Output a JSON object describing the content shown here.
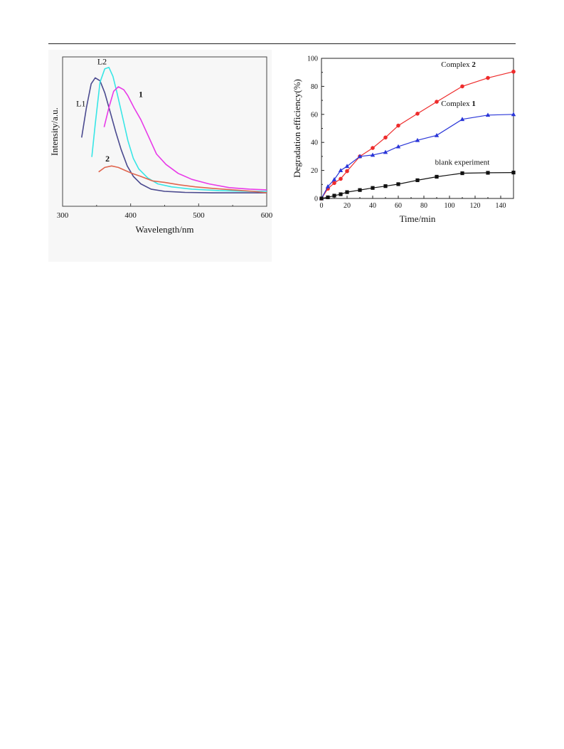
{
  "chart_data": [
    {
      "type": "line",
      "xlabel": "Wavelength/nm",
      "ylabel": "Intensity/a.u.",
      "xlim": [
        300,
        600
      ],
      "ylim": [
        0,
        100
      ],
      "x_ticks": [
        "300",
        "400",
        "500",
        "600"
      ],
      "y_ticks_labeled": false,
      "grid": false,
      "legend": "none (curves labeled inline)",
      "series": [
        {
          "name": "L1",
          "color": "#4b4a8f",
          "points": [
            [
              328,
              46
            ],
            [
              335,
              66
            ],
            [
              342,
              82
            ],
            [
              348,
              86
            ],
            [
              355,
              84
            ],
            [
              362,
              76
            ],
            [
              370,
              63
            ],
            [
              378,
              50
            ],
            [
              386,
              38
            ],
            [
              395,
              27
            ],
            [
              404,
              20
            ],
            [
              415,
              15
            ],
            [
              430,
              11.5
            ],
            [
              450,
              10
            ],
            [
              480,
              9.3
            ],
            [
              520,
              9
            ],
            [
              560,
              9
            ],
            [
              600,
              9
            ]
          ]
        },
        {
          "name": "L2",
          "color": "#38e6e6",
          "points": [
            [
              343,
              33
            ],
            [
              348,
              55
            ],
            [
              355,
              83
            ],
            [
              362,
              92
            ],
            [
              368,
              93
            ],
            [
              374,
              87
            ],
            [
              380,
              76
            ],
            [
              388,
              60
            ],
            [
              396,
              44
            ],
            [
              404,
              32
            ],
            [
              412,
              25
            ],
            [
              425,
              19
            ],
            [
              440,
              15
            ],
            [
              460,
              13
            ],
            [
              490,
              11.5
            ],
            [
              530,
              10.5
            ],
            [
              570,
              10
            ],
            [
              600,
              10
            ]
          ]
        },
        {
          "name": "1",
          "color": "#e83ae8",
          "points": [
            [
              361,
              53
            ],
            [
              368,
              66
            ],
            [
              375,
              77
            ],
            [
              382,
              80
            ],
            [
              390,
              78
            ],
            [
              396,
              74
            ],
            [
              405,
              66
            ],
            [
              415,
              58
            ],
            [
              425,
              48
            ],
            [
              438,
              35
            ],
            [
              452,
              28
            ],
            [
              470,
              22
            ],
            [
              490,
              18
            ],
            [
              515,
              15
            ],
            [
              545,
              12.5
            ],
            [
              575,
              11.5
            ],
            [
              600,
              11
            ]
          ]
        },
        {
          "name": "2",
          "color": "#e0654e",
          "points": [
            [
              353,
              23
            ],
            [
              362,
              26
            ],
            [
              372,
              27
            ],
            [
              382,
              26
            ],
            [
              392,
              24
            ],
            [
              402,
              22
            ],
            [
              415,
              20
            ],
            [
              432,
              17
            ],
            [
              450,
              16
            ],
            [
              470,
              14.5
            ],
            [
              495,
              13
            ],
            [
              520,
              12
            ],
            [
              550,
              11
            ],
            [
              580,
              10
            ],
            [
              600,
              9
            ]
          ]
        }
      ],
      "annotations": [
        {
          "text": "L1",
          "x": 327,
          "y": 67
        },
        {
          "text": "L2",
          "x": 358,
          "y": 95
        },
        {
          "text": "1",
          "x": 415,
          "y": 73
        },
        {
          "text": "2",
          "x": 366,
          "y": 30
        }
      ]
    },
    {
      "type": "line",
      "xlabel": "Time/min",
      "ylabel": "Degradation efficiency(%)",
      "xlim": [
        0,
        150
      ],
      "ylim": [
        0,
        100
      ],
      "x_ticks": [
        0,
        20,
        40,
        60,
        80,
        100,
        120,
        140
      ],
      "y_ticks": [
        0,
        20,
        40,
        60,
        80,
        100
      ],
      "grid": false,
      "legend": "none (curves labeled inline)",
      "series": [
        {
          "name": "Complex 2",
          "name_prefix": "Complex ",
          "name_bold": "2",
          "color": "#ee2b2b",
          "marker": "circle",
          "x": [
            0,
            5,
            10,
            15,
            20,
            30,
            40,
            50,
            60,
            75,
            90,
            110,
            130,
            150
          ],
          "y": [
            0,
            7,
            11,
            14,
            19.5,
            30,
            36,
            43.5,
            52,
            60.5,
            69,
            80,
            86,
            90.5
          ]
        },
        {
          "name": "Complex 1",
          "name_prefix": "Complex ",
          "name_bold": "1",
          "color": "#2a36d8",
          "marker": "triangle",
          "x": [
            0,
            5,
            10,
            15,
            20,
            30,
            40,
            50,
            60,
            75,
            90,
            110,
            130,
            150
          ],
          "y": [
            0,
            8.5,
            13.5,
            20,
            23,
            30,
            31,
            33,
            37,
            41.5,
            45,
            56.5,
            59.5,
            60
          ]
        },
        {
          "name": "blank experiment",
          "color": "#111111",
          "marker": "square",
          "x": [
            0,
            5,
            10,
            15,
            20,
            30,
            40,
            50,
            60,
            75,
            90,
            110,
            130,
            150
          ],
          "y": [
            0,
            0.8,
            2,
            3,
            4.5,
            6,
            7.5,
            8.8,
            10.2,
            13,
            15.5,
            18,
            18.3,
            18.5
          ]
        }
      ],
      "annotations": [
        {
          "series": "Complex 2",
          "x": 107,
          "y": 94
        },
        {
          "series": "Complex 1",
          "x": 107,
          "y": 66
        },
        {
          "series": "blank experiment",
          "x": 110,
          "y": 24
        }
      ]
    }
  ]
}
